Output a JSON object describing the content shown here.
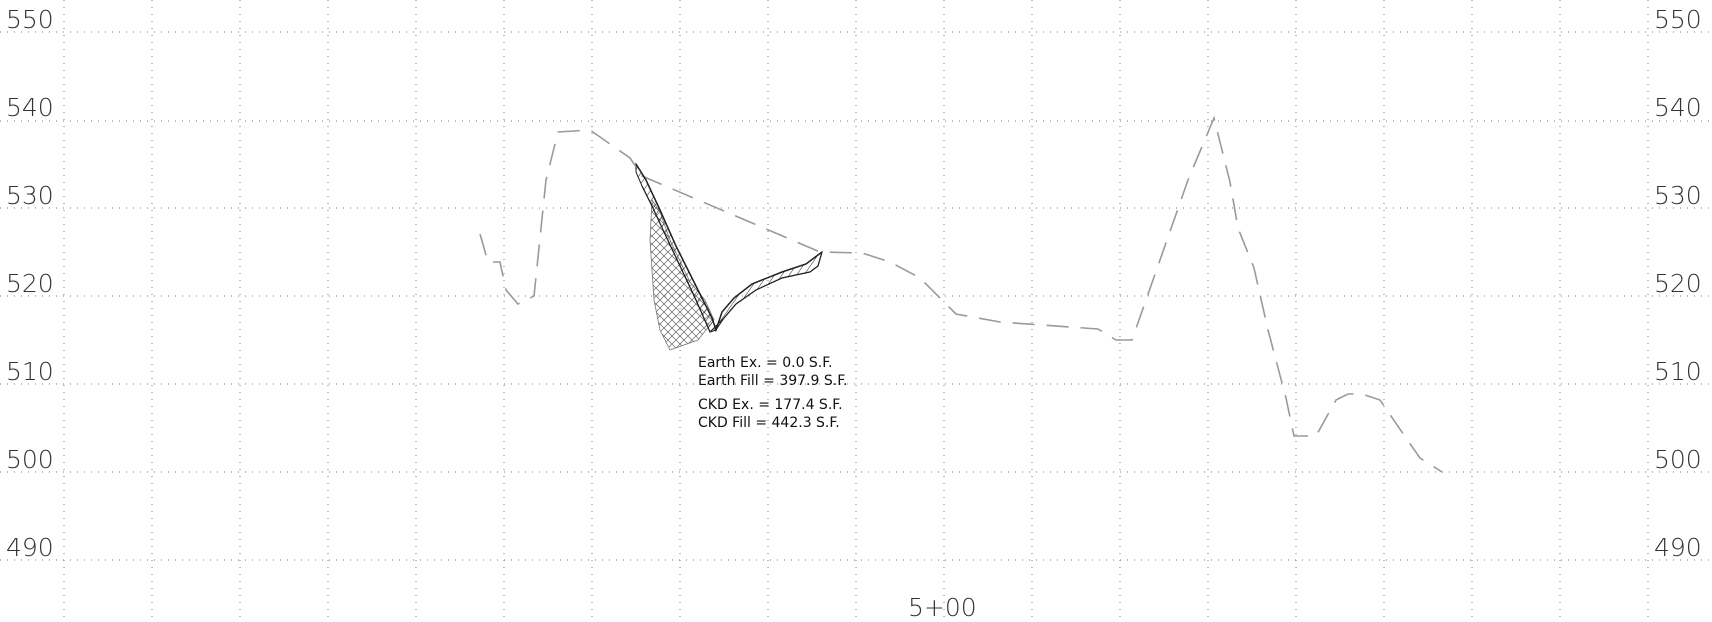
{
  "elevation_labels": [
    "550",
    "540",
    "530",
    "520",
    "510",
    "500",
    "490"
  ],
  "station_label": "5+00",
  "quantities": {
    "earth_ex": "Earth  Ex.  =  0.0  S.F.",
    "earth_fill": "Earth  Fill  =  397.9  S.F.",
    "ckd_ex": "CKD  Ex.  =  177.4  S.F.",
    "ckd_fill": "CKD  Fill  =  442.3  S.F."
  },
  "colors": {
    "grid": "#777777",
    "existing_ground": "#9a9a9a",
    "section_lines": "#222222",
    "text": "#333333"
  }
}
